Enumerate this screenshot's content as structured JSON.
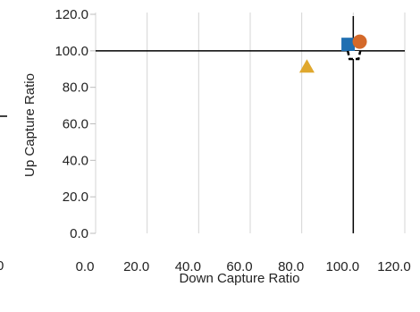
{
  "chart_data": {
    "type": "scatter",
    "title": "",
    "xlabel": "Down Capture Ratio",
    "ylabel": "Up Capture Ratio",
    "xlim": [
      0,
      120
    ],
    "ylim": [
      0,
      120
    ],
    "x_ticks": [
      "0.0",
      "20.0",
      "40.0",
      "60.0",
      "80.0",
      "100.0",
      "120.0"
    ],
    "y_ticks": [
      "0.0",
      "20.0",
      "40.0",
      "60.0",
      "80.0",
      "100.0",
      "120.0"
    ],
    "grid": "vertical",
    "reference_lines": {
      "x": 100,
      "y": 100
    },
    "points": [
      {
        "marker": "square",
        "color": "#1f6fb2",
        "x": 98.0,
        "y": 103.5
      },
      {
        "marker": "circle",
        "color": "#d4692a",
        "x": 102.5,
        "y": 105.0
      },
      {
        "marker": "triangle",
        "color": "#e0a82e",
        "x": 82.0,
        "y": 91.5
      },
      {
        "marker": "chevron-down",
        "color": "#000000",
        "x": 100.3,
        "y": 97.5
      }
    ]
  }
}
